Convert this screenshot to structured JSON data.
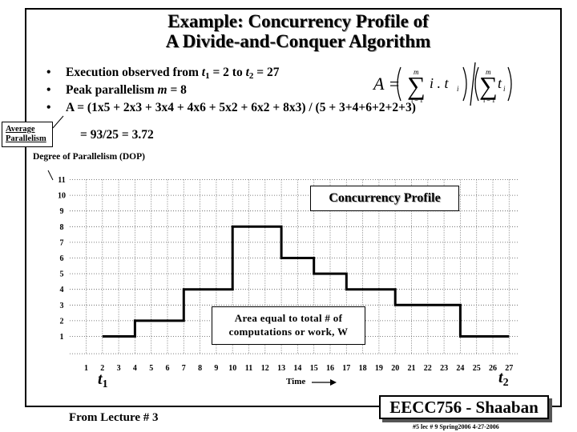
{
  "title": {
    "line1": "Example: Concurrency Profile of",
    "line2": "A Divide-and-Conquer Algorithm"
  },
  "bullets": {
    "b1_pre": "Execution observed from ",
    "b1_t1": "t",
    "b1_t1_sub": "1",
    "b1_mid": " = 2  to  ",
    "b1_t2": "t",
    "b1_t2_sub": "2",
    "b1_post": " = 27",
    "b2_pre": "Peak parallelism  ",
    "b2_m": "m",
    "b2_post": " = 8",
    "b3": "A =  (1x5 + 2x3 + 3x4 + 4x6 + 5x2 + 6x2 + 8x3) / (5 + 3+4+6+2+2+3)",
    "b3_cont": "= 93/25  = 3.72",
    "bullet_char": "•"
  },
  "average_box": {
    "line1": "Average",
    "line2": "Parallelism"
  },
  "formula": {
    "lhs": "A =",
    "sum": "∑",
    "sum_top": "m",
    "sum_bottom": "i = 1",
    "num_term": "i . t",
    "num_sub": "i",
    "den_term": "t",
    "den_sub": "i"
  },
  "dop_label": "Degree of Parallelism (DOP)",
  "legend_label": "Concurrency Profile",
  "area_note": {
    "line1": "Area equal to total # of",
    "line2": "computations or work, W"
  },
  "t1_label": {
    "t": "t",
    "sub": "1"
  },
  "t2_label": {
    "t": "t",
    "sub": "2"
  },
  "time_label": "Time",
  "from_lecture": "From Lecture # 3",
  "course_badge": "EECC756 - Shaaban",
  "footer": "#5  lec # 9  Spring2006  4-27-2006",
  "chart_data": {
    "type": "line",
    "step": true,
    "xlabel": "Time",
    "ylabel": "Degree of Parallelism (DOP)",
    "x_ticks": [
      1,
      2,
      3,
      4,
      5,
      6,
      7,
      8,
      9,
      10,
      11,
      12,
      13,
      14,
      15,
      16,
      17,
      18,
      19,
      20,
      21,
      22,
      23,
      24,
      25,
      26,
      27
    ],
    "y_ticks": [
      1,
      2,
      3,
      4,
      5,
      6,
      7,
      8,
      9,
      10,
      11
    ],
    "xlim": [
      1,
      27
    ],
    "ylim": [
      0,
      11
    ],
    "grid": "dotted",
    "series": [
      {
        "name": "Concurrency Profile",
        "steps": [
          {
            "x_start": 2,
            "x_end": 4,
            "dop": 1
          },
          {
            "x_start": 4,
            "x_end": 7,
            "dop": 2
          },
          {
            "x_start": 7,
            "x_end": 10,
            "dop": 4
          },
          {
            "x_start": 10,
            "x_end": 13,
            "dop": 8
          },
          {
            "x_start": 13,
            "x_end": 15,
            "dop": 6
          },
          {
            "x_start": 15,
            "x_end": 17,
            "dop": 5
          },
          {
            "x_start": 17,
            "x_end": 20,
            "dop": 4
          },
          {
            "x_start": 20,
            "x_end": 24,
            "dop": 3
          },
          {
            "x_start": 24,
            "x_end": 27,
            "dop": 1
          }
        ]
      }
    ],
    "line_color": "#000000"
  }
}
